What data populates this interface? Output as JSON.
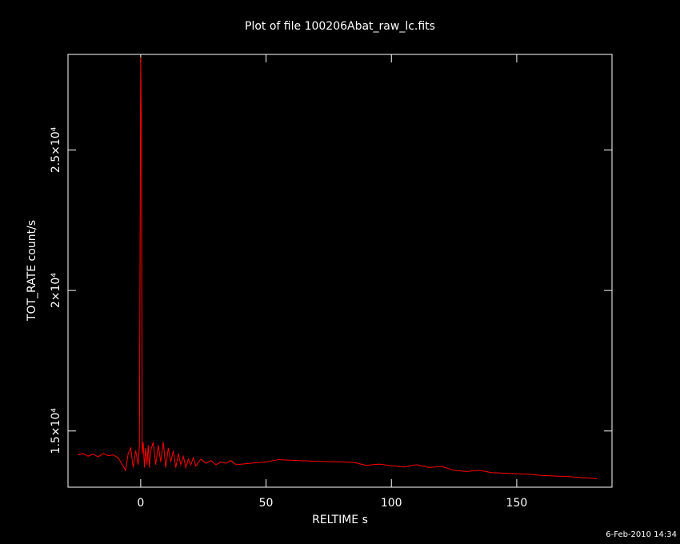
{
  "chart_data": {
    "type": "line",
    "title": "Plot of file 100206Abat_raw_lc.fits",
    "x_label": "RELTIME  s",
    "y_label": "TOT_RATE  count/s",
    "footer": "6-Feb-2010 14:34",
    "color": "#ff0000",
    "x": [
      -25,
      -23,
      -21,
      -19,
      -17,
      -15,
      -13,
      -11,
      -9,
      -7,
      -6,
      -5,
      -4,
      -3,
      -2,
      -1,
      -0.5,
      0,
      0.3,
      0.6,
      1,
      1.5,
      2,
      2.5,
      3,
      3.5,
      4,
      5,
      6,
      7,
      8,
      9,
      10,
      11,
      12,
      13,
      14,
      15,
      16,
      17,
      18,
      19,
      20,
      21,
      22,
      24,
      26,
      28,
      30,
      32,
      34,
      36,
      38,
      40,
      45,
      50,
      55,
      60,
      70,
      80,
      85,
      90,
      95,
      100,
      105,
      110,
      115,
      120,
      125,
      130,
      135,
      140,
      145,
      150,
      155,
      160,
      165,
      170,
      175,
      180,
      182
    ],
    "values": [
      14150,
      14200,
      14100,
      14180,
      14080,
      14200,
      14120,
      14150,
      14050,
      13750,
      13600,
      14200,
      14400,
      13700,
      14300,
      13800,
      14500,
      28300,
      25600,
      14200,
      14600,
      13700,
      14400,
      13800,
      14500,
      13700,
      14300,
      14600,
      13800,
      14500,
      13900,
      14600,
      13700,
      14400,
      13900,
      14300,
      13700,
      14200,
      13800,
      14100,
      13700,
      14000,
      13800,
      14050,
      13750,
      14000,
      13850,
      13950,
      13800,
      13900,
      13850,
      13950,
      13800,
      13820,
      13860,
      13900,
      13980,
      13960,
      13920,
      13900,
      13880,
      13780,
      13820,
      13760,
      13720,
      13800,
      13700,
      13740,
      13600,
      13560,
      13600,
      13520,
      13500,
      13480,
      13460,
      13420,
      13400,
      13380,
      13350,
      13320,
      13300
    ],
    "xlim": [
      -29,
      188
    ],
    "ylim": [
      13000,
      28400
    ],
    "xticks": [
      0,
      50,
      100,
      150
    ],
    "yticks": [
      {
        "value": 15000,
        "label": "1.5×10⁴"
      },
      {
        "value": 20000,
        "label": "2×10⁴"
      },
      {
        "value": 25000,
        "label": "2.5×10⁴"
      }
    ]
  }
}
